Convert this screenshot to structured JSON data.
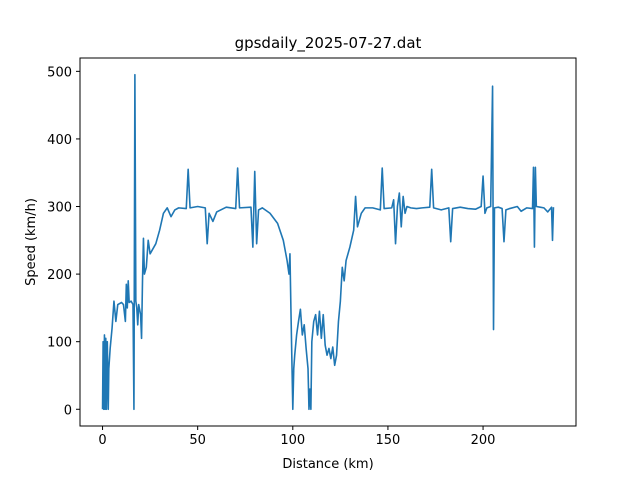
{
  "chart_data": {
    "type": "line",
    "title": "gpsdaily_2025-07-27.dat",
    "x_label": "Distance (km)",
    "y_label": "Speed (km/h)",
    "color": "#1f77b4",
    "x": [
      0,
      0.3,
      0.6,
      1,
      1.3,
      1.7,
      2,
      2.5,
      3,
      3.3,
      4,
      5,
      6,
      7,
      8,
      10,
      11,
      12,
      12.5,
      13,
      13.5,
      14,
      15,
      16,
      16.5,
      17,
      17.5,
      18,
      18.5,
      19,
      20,
      20.5,
      21,
      21.5,
      22,
      23,
      24,
      25,
      26,
      28,
      30,
      32,
      34,
      36,
      38,
      40,
      44,
      45,
      46,
      50,
      54,
      55,
      56,
      58,
      60,
      65,
      70,
      71,
      72,
      78,
      79,
      80,
      81,
      82,
      84,
      88,
      92,
      95,
      97,
      98,
      98.5,
      99,
      99.5,
      100,
      100.5,
      101,
      102,
      103,
      104,
      105,
      106,
      107,
      108,
      108.5,
      109,
      109.5,
      110,
      111,
      112,
      113,
      114,
      115,
      116,
      117,
      118,
      119,
      120,
      121,
      122,
      123,
      124,
      125,
      126,
      127,
      128,
      130,
      132,
      133,
      134,
      136,
      138,
      142,
      146,
      147,
      148,
      152,
      153,
      154,
      155,
      156,
      157,
      158,
      159,
      160,
      162,
      165,
      168,
      172,
      173,
      174,
      178,
      182,
      183,
      184,
      188,
      192,
      196,
      199,
      200,
      201,
      202,
      204,
      205,
      205.5,
      206,
      208,
      210,
      211,
      212,
      214,
      218,
      220,
      223,
      226,
      226.5,
      227,
      227.5,
      228,
      230,
      232,
      234,
      236,
      236.5,
      237
    ],
    "values": [
      0,
      100,
      0,
      110,
      0,
      105,
      0,
      100,
      0,
      60,
      90,
      120,
      160,
      130,
      155,
      158,
      155,
      130,
      185,
      150,
      190,
      158,
      160,
      155,
      0,
      495,
      160,
      150,
      125,
      155,
      140,
      105,
      190,
      253,
      200,
      210,
      250,
      230,
      235,
      245,
      265,
      290,
      298,
      285,
      295,
      298,
      297,
      355,
      298,
      300,
      298,
      245,
      290,
      278,
      292,
      299,
      297,
      357,
      298,
      299,
      240,
      352,
      245,
      295,
      298,
      290,
      275,
      250,
      220,
      200,
      230,
      150,
      75,
      0,
      60,
      80,
      110,
      130,
      148,
      110,
      125,
      90,
      60,
      0,
      30,
      0,
      100,
      130,
      140,
      110,
      145,
      105,
      140,
      95,
      80,
      90,
      75,
      92,
      65,
      80,
      130,
      160,
      210,
      190,
      220,
      240,
      265,
      315,
      270,
      290,
      298,
      298,
      295,
      357,
      297,
      298,
      310,
      245,
      300,
      320,
      270,
      315,
      290,
      300,
      298,
      297,
      298,
      299,
      355,
      298,
      295,
      298,
      248,
      297,
      299,
      297,
      296,
      300,
      345,
      290,
      298,
      300,
      478,
      118,
      298,
      299,
      297,
      248,
      295,
      297,
      300,
      293,
      298,
      297,
      358,
      240,
      358,
      300,
      299,
      298,
      292,
      299,
      250,
      299
    ],
    "xlim": [
      -11.85,
      248.85
    ],
    "ylim": [
      -24.75,
      519.75
    ],
    "xticks": [
      0,
      50,
      100,
      150,
      200
    ],
    "yticks": [
      0,
      100,
      200,
      300,
      400,
      500
    ]
  }
}
